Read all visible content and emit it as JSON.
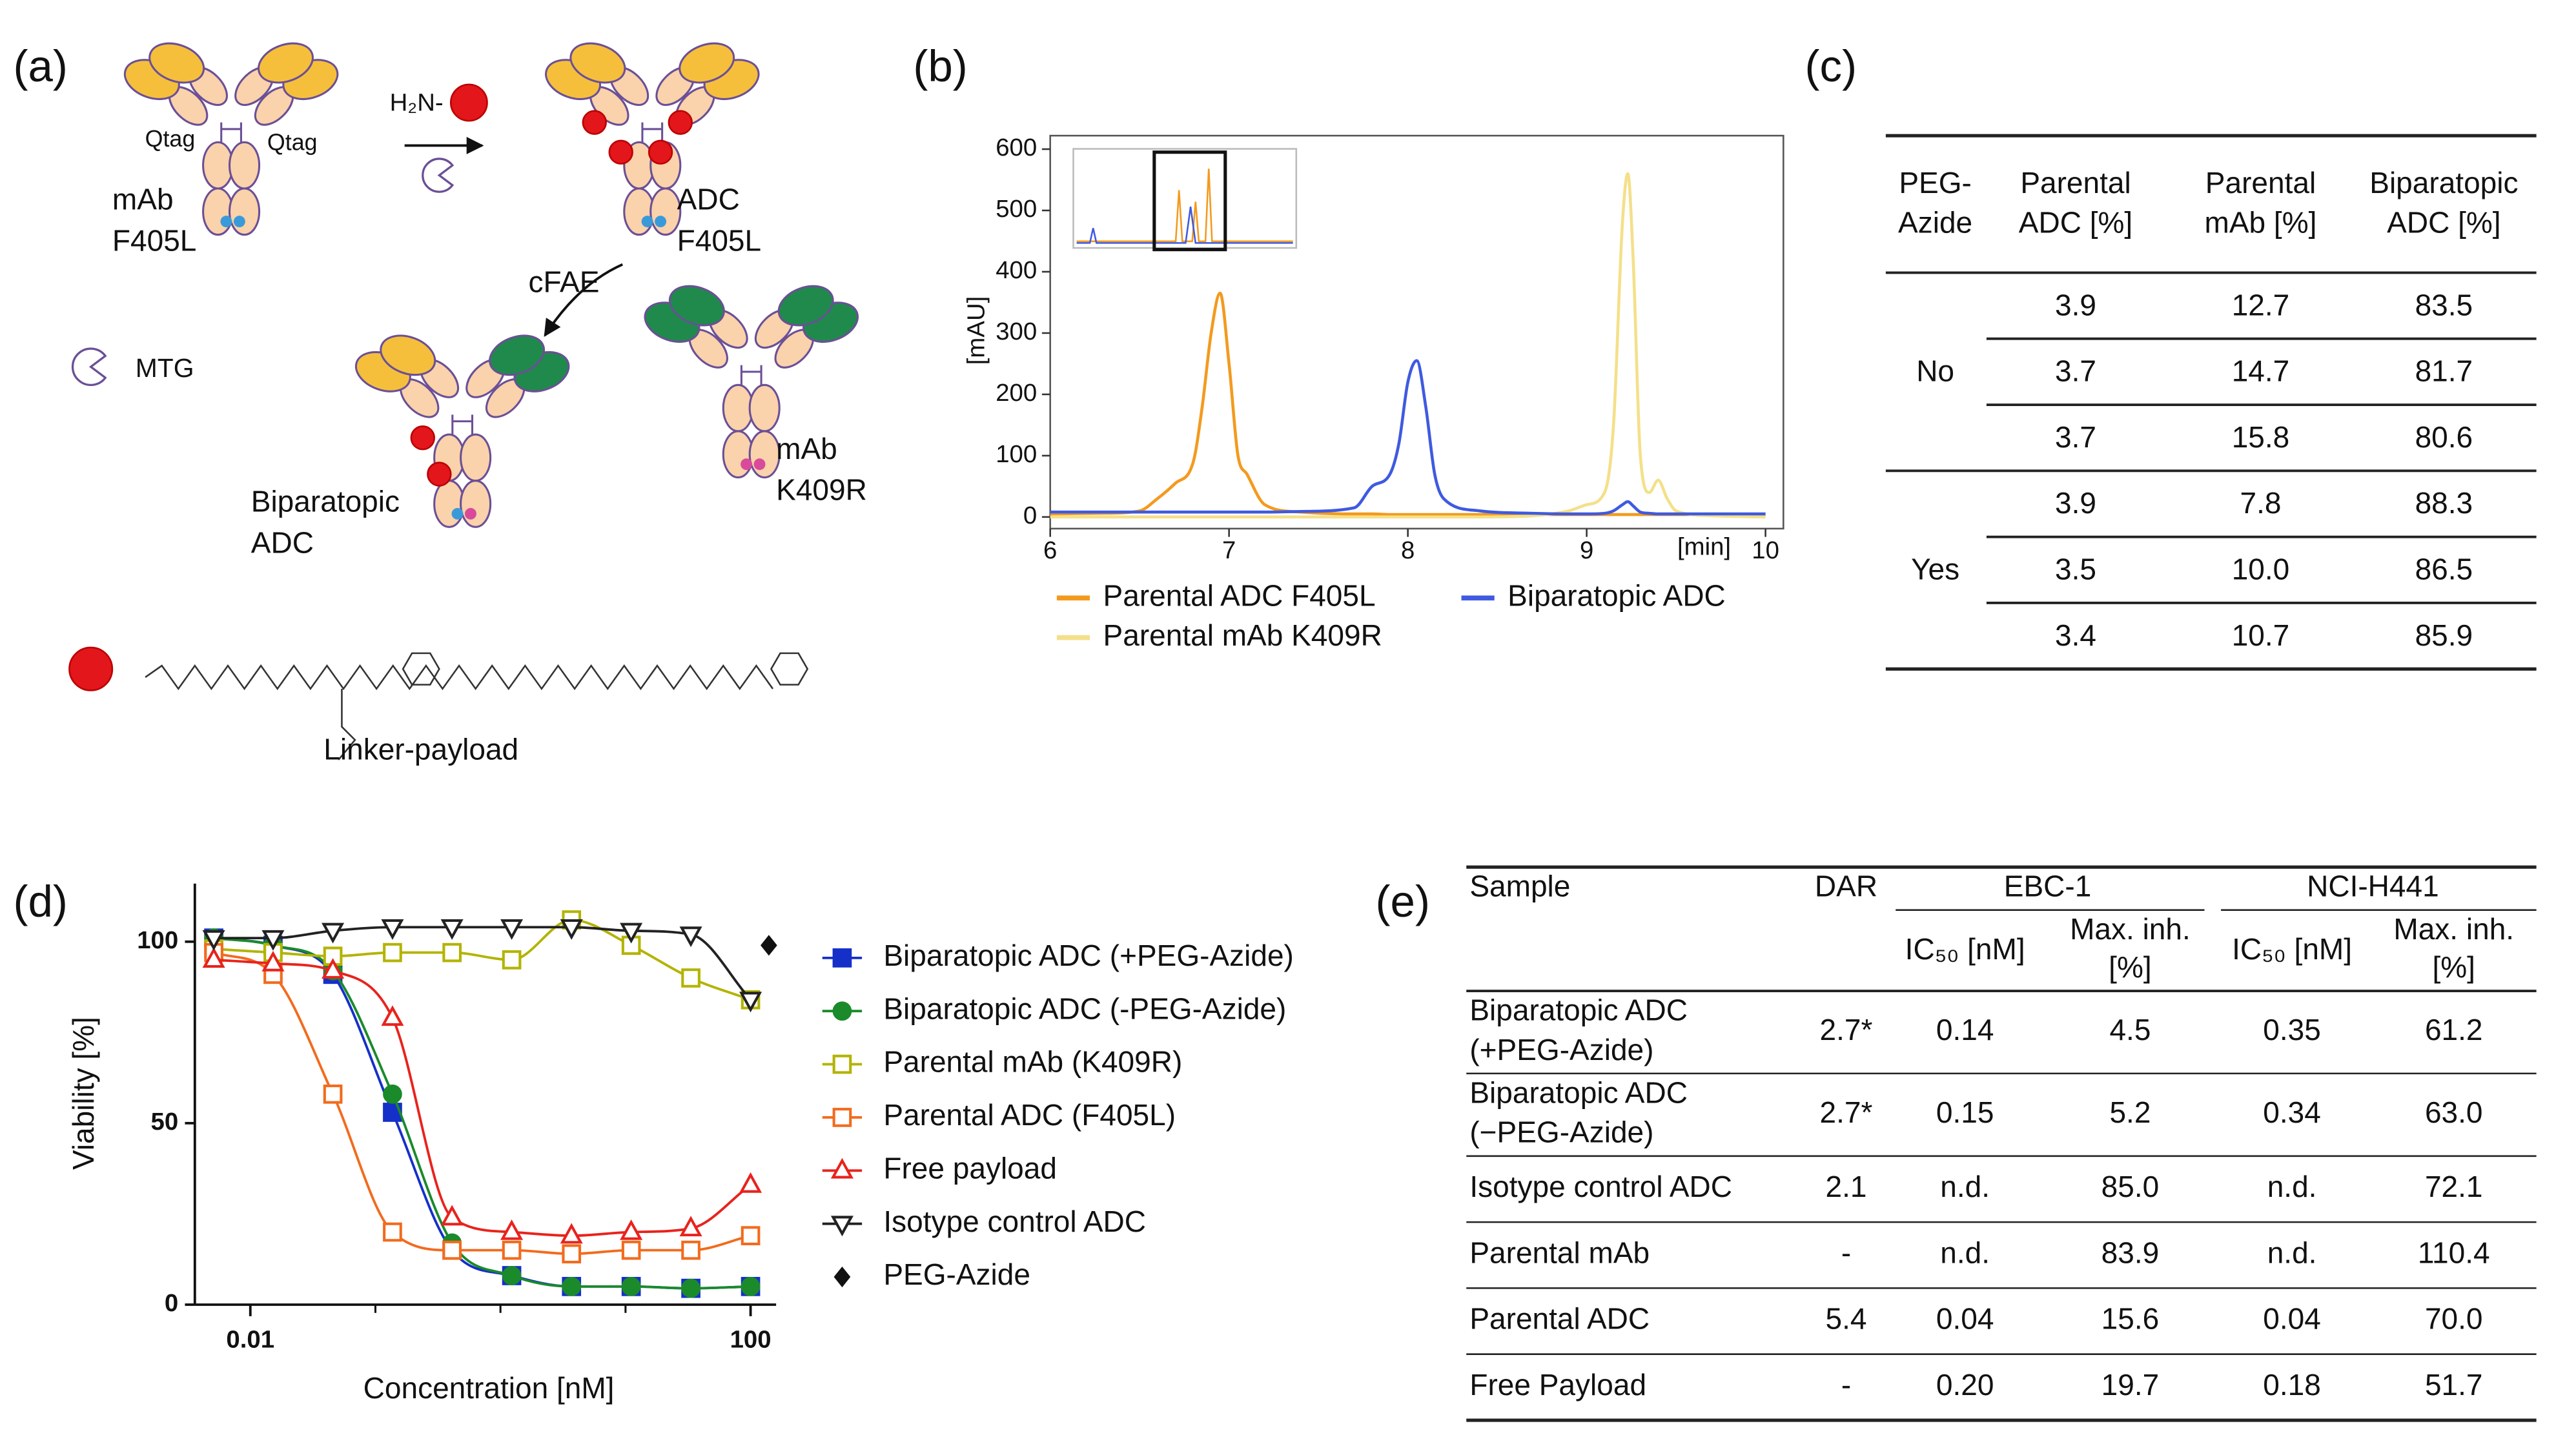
{
  "panel_labels": [
    "(a)",
    "(b)",
    "(c)",
    "(d)",
    "(e)"
  ],
  "diagram": {
    "qtag": [
      "Qtag",
      "Qtag"
    ],
    "mab_f405l": [
      "mAb",
      "F405L"
    ],
    "amine": "H₂N-",
    "adc_f405l": [
      "ADC",
      "F405L"
    ],
    "cfae": "cFAE",
    "mtg": "MTG",
    "mab_k409r": [
      "mAb",
      "K409R"
    ],
    "biparatopic": [
      "Biparatopic",
      "ADC"
    ],
    "linker": "Linker-payload"
  },
  "chart_data": [
    {
      "type": "line",
      "x": [
        6.0,
        6.3,
        6.5,
        6.6,
        6.7,
        6.8,
        6.85,
        6.9,
        6.95,
        7.0,
        7.05,
        7.1,
        7.2,
        7.4,
        7.7,
        7.8,
        7.9,
        7.95,
        8.0,
        8.05,
        8.1,
        8.15,
        8.2,
        8.4,
        8.7,
        8.9,
        9.0,
        9.1,
        9.15,
        9.2,
        9.23,
        9.26,
        9.3,
        9.35,
        9.4,
        9.45,
        9.5,
        9.7,
        10.0
      ],
      "series": [
        {
          "name": "Parental ADC F405L",
          "color": "#f39a1e",
          "values": [
            5,
            6,
            10,
            30,
            55,
            90,
            180,
            300,
            365,
            250,
            100,
            70,
            20,
            8,
            5,
            5,
            4,
            4,
            4,
            4,
            4,
            4,
            4,
            4,
            4,
            4,
            4,
            4,
            4,
            4,
            4,
            4,
            4,
            4,
            4,
            4,
            4,
            4,
            4
          ]
        },
        {
          "name": "Parental mAb K409R",
          "color": "#f4e08a",
          "values": [
            0,
            0,
            0,
            0,
            0,
            0,
            0,
            0,
            0,
            0,
            0,
            0,
            0,
            0,
            0,
            0,
            0,
            0,
            0,
            0,
            0,
            0,
            0,
            0,
            2,
            10,
            20,
            40,
            150,
            480,
            560,
            420,
            100,
            40,
            60,
            30,
            10,
            2,
            0
          ]
        },
        {
          "name": "Biparatopic ADC",
          "color": "#3f5ae0",
          "values": [
            8,
            8,
            8,
            8,
            8,
            8,
            8,
            8,
            8,
            8,
            8,
            8,
            8,
            9,
            15,
            50,
            70,
            120,
            220,
            255,
            180,
            70,
            30,
            10,
            6,
            5,
            5,
            6,
            10,
            20,
            25,
            18,
            8,
            6,
            5,
            5,
            5,
            5,
            5
          ]
        }
      ],
      "xlim": [
        6,
        10.1
      ],
      "xticks": [
        6,
        7,
        8,
        9,
        10
      ],
      "ylim": [
        -19,
        622
      ],
      "yticks": [
        0,
        100,
        200,
        300,
        400,
        500,
        600
      ],
      "xlabel": "[min]",
      "ylabel": "[mAU]"
    },
    {
      "type": "scatter",
      "xlog": true,
      "x": [
        0.0051,
        0.0152,
        0.0457,
        0.137,
        0.41,
        1.23,
        3.7,
        11.1,
        33.3,
        100
      ],
      "series": [
        {
          "name": "Biparatopic ADC (+PEG-Azide)",
          "color": "#1530c8",
          "marker": "square",
          "filled": true,
          "fit": true,
          "values": [
            101,
            99,
            91,
            53,
            15,
            8,
            5,
            5,
            4.5,
            5
          ]
        },
        {
          "name": "Biparatopic ADC (-PEG-Azide)",
          "color": "#1a8a2a",
          "marker": "circle",
          "filled": true,
          "fit": true,
          "values": [
            101,
            99,
            92,
            58,
            17,
            8,
            5,
            5,
            4.5,
            5
          ]
        },
        {
          "name": "Parental mAb (K409R)",
          "color": "#b3b300",
          "marker": "square",
          "filled": false,
          "fit": true,
          "values": [
            98,
            97,
            96,
            97,
            97,
            95,
            106,
            99,
            90,
            84
          ]
        },
        {
          "name": "Parental ADC (F405L)",
          "color": "#f26b1d",
          "marker": "square",
          "filled": false,
          "fit": true,
          "values": [
            97,
            91,
            58,
            20,
            15,
            15,
            14,
            15,
            15,
            19
          ]
        },
        {
          "name": "Free payload",
          "color": "#e8231c",
          "marker": "triangle",
          "filled": false,
          "fit": true,
          "values": [
            95,
            94,
            92,
            79,
            24,
            20,
            19,
            20,
            21,
            33
          ]
        },
        {
          "name": "Isotype control ADC",
          "color": "#222222",
          "marker": "triangle-down",
          "filled": false,
          "fit": true,
          "values": [
            101,
            101,
            103,
            104,
            104,
            104,
            104,
            103,
            102,
            84
          ]
        },
        {
          "name": "PEG-Azide",
          "color": "#111111",
          "marker": "diamond",
          "filled": true,
          "fit": false,
          "x": [
            140
          ],
          "values": [
            99
          ]
        }
      ],
      "xlim": [
        0.0036,
        160
      ],
      "xticks": [
        0.01,
        100
      ],
      "xminorticks": [
        0.1,
        1,
        10
      ],
      "ylim": [
        0,
        116
      ],
      "yticks": [
        0,
        50,
        100
      ],
      "xlabel": "Concentration [nM]",
      "ylabel": "Viability [%]"
    }
  ],
  "table_c": {
    "header": [
      [
        "PEG-",
        "Azide"
      ],
      [
        "Parental",
        "ADC [%]"
      ],
      [
        "Parental",
        "mAb [%]"
      ],
      [
        "Biparatopic",
        "ADC [%]"
      ]
    ],
    "groups": [
      "No",
      "Yes"
    ],
    "rows": [
      [
        "3.9",
        "12.7",
        "83.5"
      ],
      [
        "3.7",
        "14.7",
        "81.7"
      ],
      [
        "3.7",
        "15.8",
        "80.6"
      ],
      [
        "3.9",
        "7.8",
        "88.3"
      ],
      [
        "3.5",
        "10.0",
        "86.5"
      ],
      [
        "3.4",
        "10.7",
        "85.9"
      ]
    ]
  },
  "table_e": {
    "header": {
      "sample": "Sample",
      "dar": "DAR",
      "ebc": "EBC-1",
      "nci": "NCI-H441",
      "ic50": [
        "IC₅₀ [nM]",
        "IC₅₀ [nM]"
      ],
      "maxinh": [
        [
          "Max. inh.",
          "[%]"
        ],
        [
          "Max. inh.",
          "[%]"
        ]
      ]
    },
    "rows": [
      {
        "sample": [
          "Biparatopic ADC",
          "(+PEG-Azide)"
        ],
        "cells": [
          "2.7*",
          "0.14",
          "4.5",
          "0.35",
          "61.2"
        ]
      },
      {
        "sample": [
          "Biparatopic ADC",
          "(−PEG-Azide)"
        ],
        "cells": [
          "2.7*",
          "0.15",
          "5.2",
          "0.34",
          "63.0"
        ]
      },
      {
        "sample": [
          "Isotype control ADC"
        ],
        "cells": [
          "2.1",
          "n.d.",
          "85.0",
          "n.d.",
          "72.1"
        ]
      },
      {
        "sample": [
          "Parental mAb"
        ],
        "cells": [
          "-",
          "n.d.",
          "83.9",
          "n.d.",
          "110.4"
        ]
      },
      {
        "sample": [
          "Parental ADC"
        ],
        "cells": [
          "5.4",
          "0.04",
          "15.6",
          "0.04",
          "70.0"
        ]
      },
      {
        "sample": [
          "Free Payload"
        ],
        "cells": [
          "-",
          "0.20",
          "19.7",
          "0.18",
          "51.7"
        ]
      }
    ]
  }
}
